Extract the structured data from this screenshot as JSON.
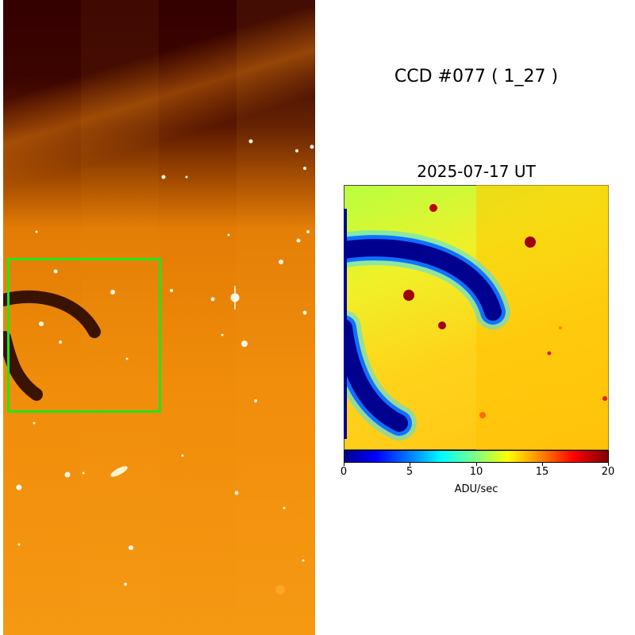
{
  "title": "CCD #077 ( 1_27 )",
  "subtitle": "2025-07-17 UT",
  "colorbar": {
    "ticks": [
      "0",
      "5",
      "10",
      "15",
      "20"
    ],
    "label": "ADU/sec",
    "range": [
      0,
      20
    ],
    "colormap": "jet"
  },
  "left_image": {
    "colormap": "hot",
    "highlight_box_color": "#1be81b"
  },
  "zoom_panel": {
    "colormap": "jet"
  }
}
